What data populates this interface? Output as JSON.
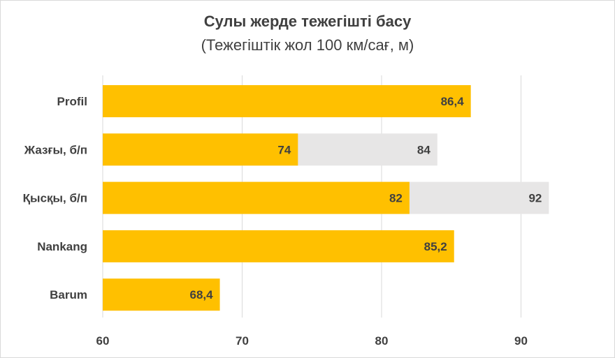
{
  "chart_data": {
    "type": "bar",
    "orientation": "horizontal",
    "title": "Сулы жерде тежегішті басу",
    "subtitle": "(Тежегіштік жол 100 км/сағ, м)",
    "categories": [
      "Profil",
      "Жазғы, б/п",
      "Қысқы, б/п",
      "Nankang",
      "Barum"
    ],
    "series": [
      {
        "values": [
          86.4,
          74,
          82,
          85.2,
          68.4
        ],
        "labels": [
          "86,4",
          "74",
          "82",
          "85,2",
          "68,4"
        ],
        "color": "#FFC000"
      },
      {
        "values": [
          null,
          84,
          92,
          null,
          null
        ],
        "labels": [
          "",
          "84",
          "92",
          "",
          ""
        ],
        "color": "#E7E6E6"
      }
    ],
    "xlim": [
      60,
      92
    ],
    "xticks": [
      60,
      70,
      80,
      90
    ],
    "grid": true,
    "legend": "none"
  },
  "colors": {
    "gridline": "#D9D9D9",
    "text": "#404040"
  }
}
